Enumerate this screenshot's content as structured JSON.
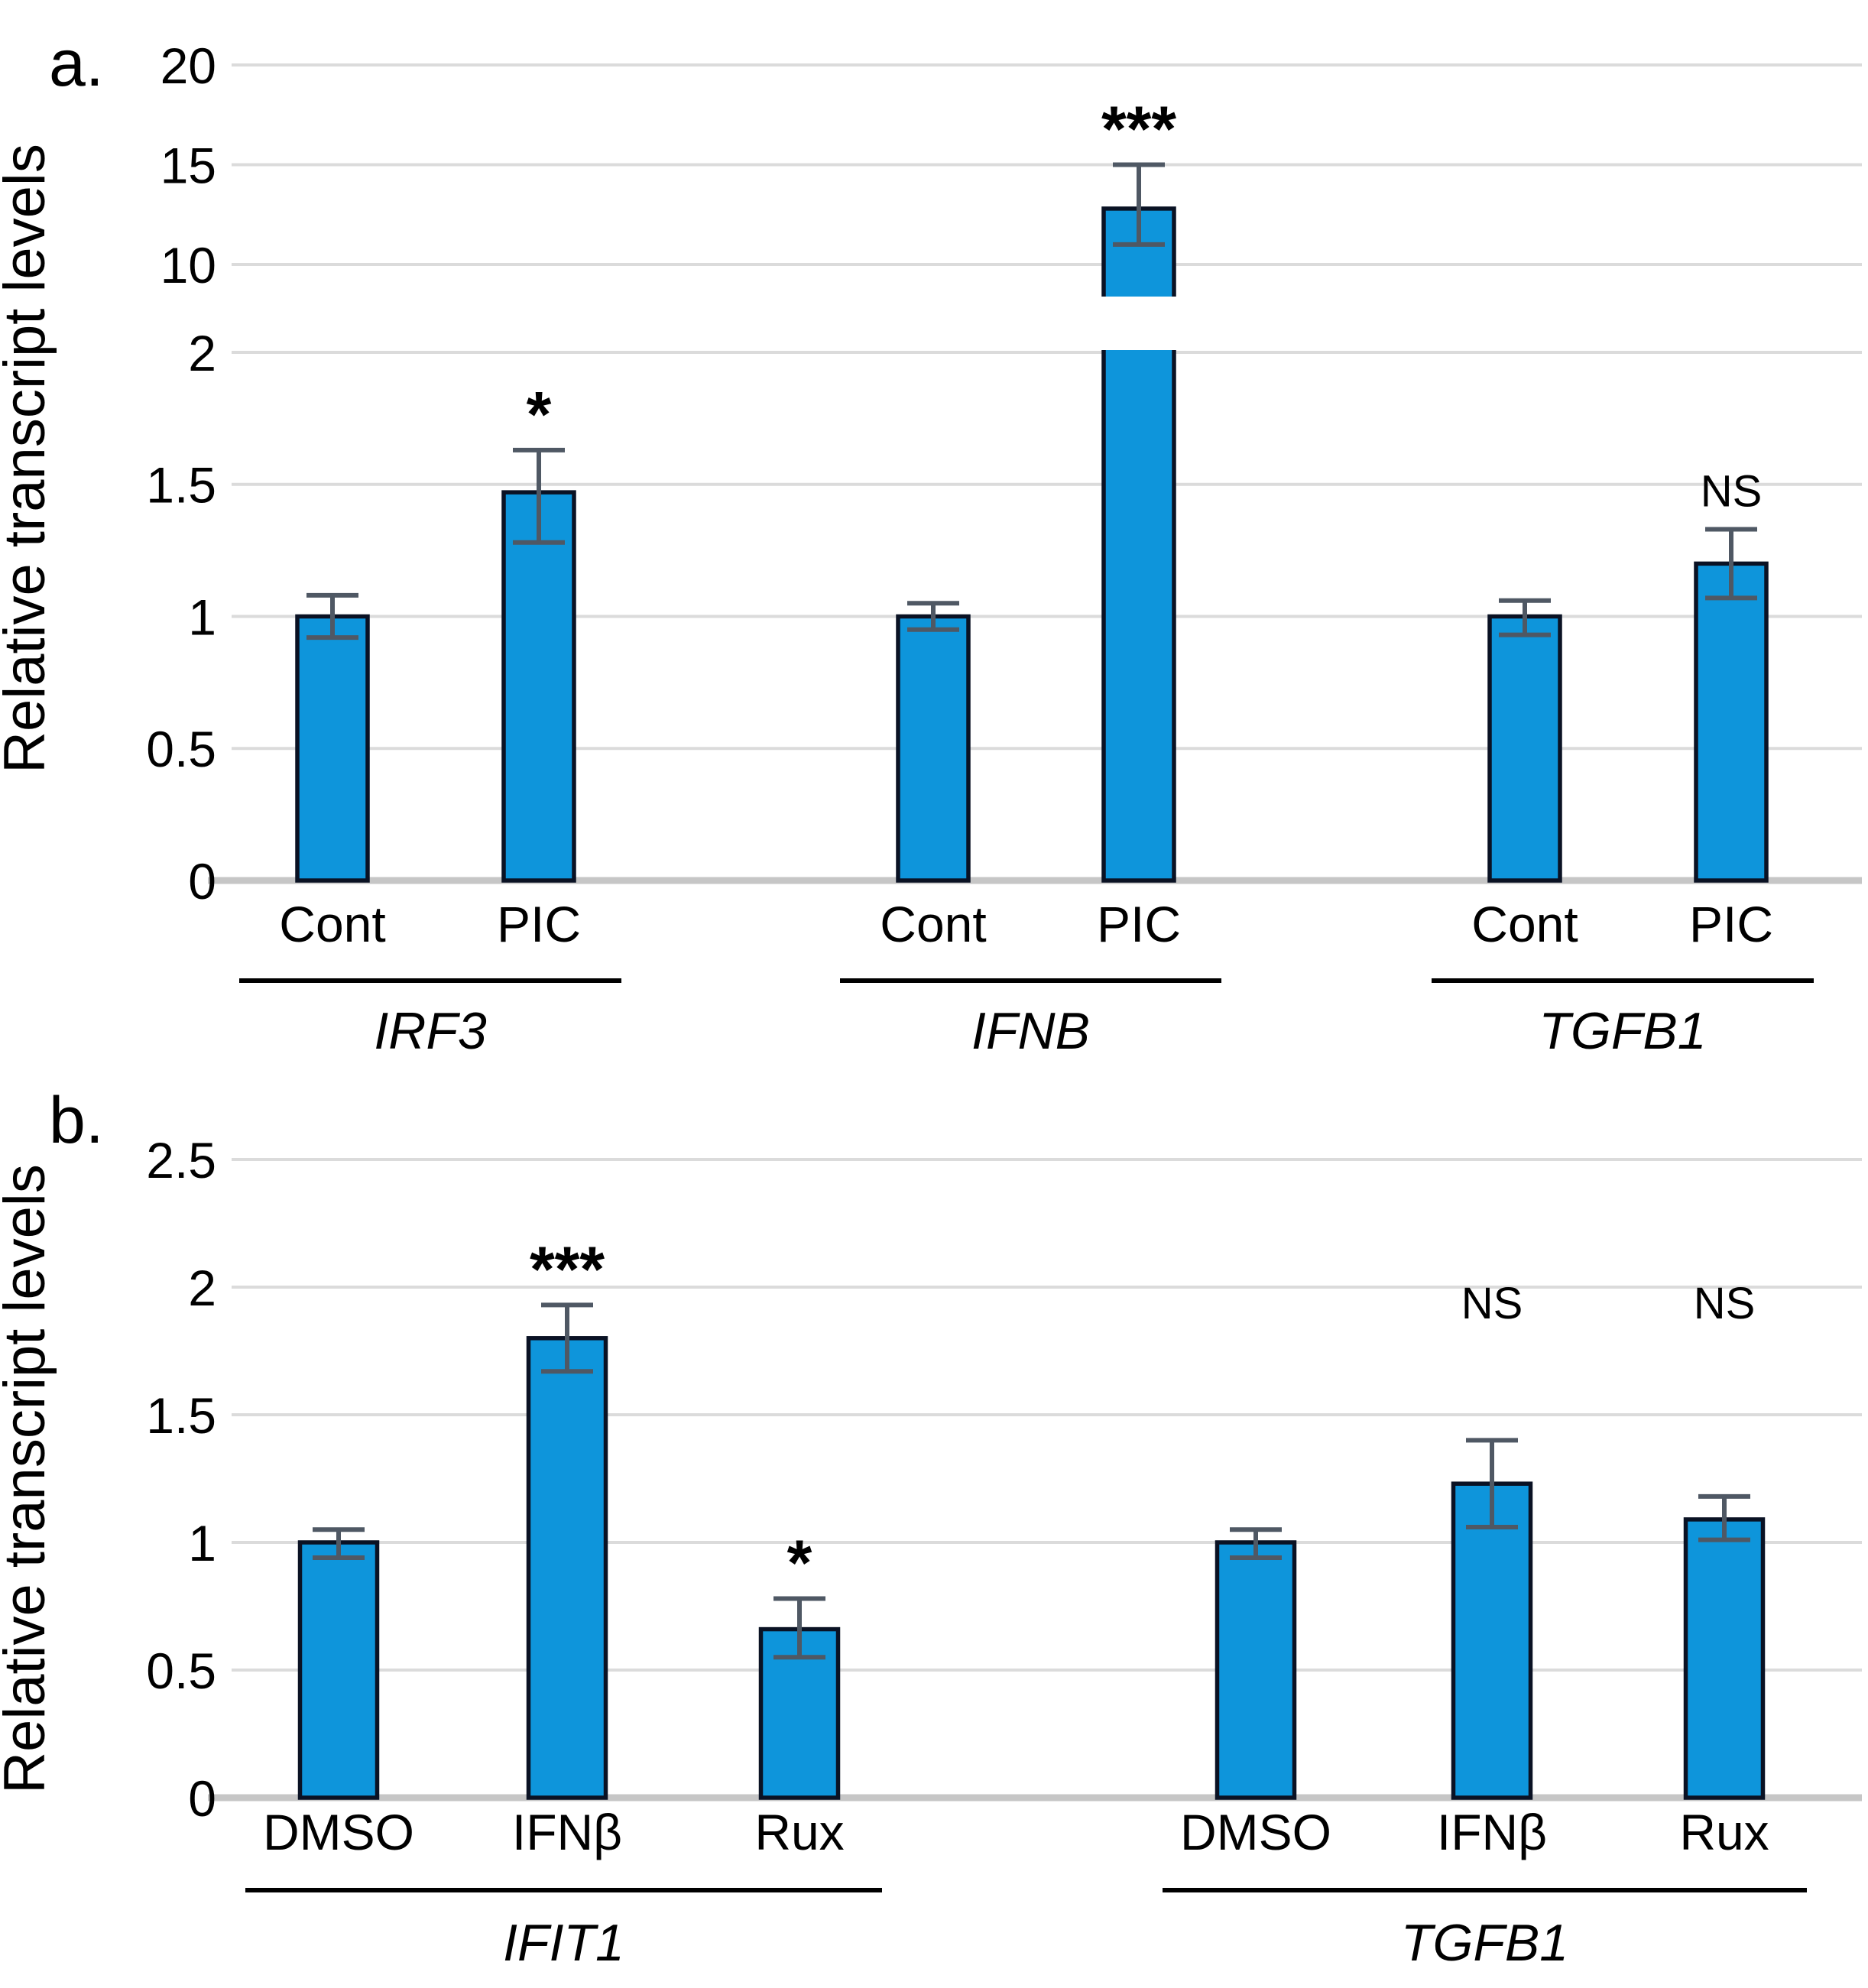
{
  "figure_title": "",
  "colors": {
    "bar_fill": "#0E95DB",
    "bar_stroke": "#0A1224",
    "error_bar": "#4F5864",
    "gridline": "#DBDBDB",
    "baseline": "#C6C6C6",
    "text": "#000000",
    "underline": "#000000",
    "background": "#FFFFFF"
  },
  "chart_data": [
    {
      "id": "panel_a",
      "panel_letter": "a.",
      "type": "bar",
      "title": "",
      "xlabel": "",
      "ylabel": "Relative transcript levels",
      "grid": true,
      "legend_position": "none",
      "axis_break": {
        "between": [
          2,
          10
        ]
      },
      "ylim_segments": [
        [
          0,
          2
        ],
        [
          10,
          20
        ]
      ],
      "y_ticks": [
        {
          "v": 0,
          "label": "0"
        },
        {
          "v": 0.5,
          "label": "0.5"
        },
        {
          "v": 1,
          "label": "1"
        },
        {
          "v": 1.5,
          "label": "1.5"
        },
        {
          "v": 2,
          "label": "2"
        },
        {
          "v": 10,
          "label": "10"
        },
        {
          "v": 15,
          "label": "15"
        },
        {
          "v": 20,
          "label": "20"
        }
      ],
      "groups": [
        {
          "gene": "IRF3",
          "bars": [
            {
              "label": "Cont",
              "value": 1.0,
              "err_up": 0.08,
              "err_down": 0.08,
              "sig": ""
            },
            {
              "label": "PIC",
              "value": 1.47,
              "err_up": 0.16,
              "err_down": 0.19,
              "sig": "*"
            }
          ]
        },
        {
          "gene": "IFNB",
          "bars": [
            {
              "label": "Cont",
              "value": 1.0,
              "err_up": 0.05,
              "err_down": 0.05,
              "sig": ""
            },
            {
              "label": "PIC",
              "value": 12.8,
              "err_up": 2.2,
              "err_down": 1.8,
              "sig": "***",
              "crosses_break": true
            }
          ]
        },
        {
          "gene": "TGFB1",
          "bars": [
            {
              "label": "Cont",
              "value": 1.0,
              "err_up": 0.06,
              "err_down": 0.07,
              "sig": ""
            },
            {
              "label": "PIC",
              "value": 1.2,
              "err_up": 0.13,
              "err_down": 0.13,
              "sig": "NS"
            }
          ]
        }
      ]
    },
    {
      "id": "panel_b",
      "panel_letter": "b.",
      "type": "bar",
      "title": "",
      "xlabel": "",
      "ylabel": "Relative transcript levels",
      "grid": true,
      "legend_position": "none",
      "ylim_segments": [
        [
          0,
          2.5
        ]
      ],
      "y_ticks": [
        {
          "v": 0,
          "label": "0"
        },
        {
          "v": 0.5,
          "label": "0.5"
        },
        {
          "v": 1,
          "label": "1"
        },
        {
          "v": 1.5,
          "label": "1.5"
        },
        {
          "v": 2,
          "label": "2"
        },
        {
          "v": 2.5,
          "label": "2.5"
        }
      ],
      "groups": [
        {
          "gene": "IFIT1",
          "bars": [
            {
              "label": "DMSO",
              "value": 1.0,
              "err_up": 0.05,
              "err_down": 0.06,
              "sig": ""
            },
            {
              "label": "IFNβ",
              "value": 1.8,
              "err_up": 0.13,
              "err_down": 0.13,
              "sig": "***"
            },
            {
              "label": "Rux",
              "value": 0.66,
              "err_up": 0.12,
              "err_down": 0.11,
              "sig": "*"
            }
          ]
        },
        {
          "gene": "TGFB1",
          "bars": [
            {
              "label": "DMSO",
              "value": 1.0,
              "err_up": 0.05,
              "err_down": 0.06,
              "sig": ""
            },
            {
              "label": "IFNβ",
              "value": 1.23,
              "err_up": 0.17,
              "err_down": 0.17,
              "sig": "NS"
            },
            {
              "label": "Rux",
              "value": 1.09,
              "err_up": 0.09,
              "err_down": 0.08,
              "sig": "NS"
            }
          ]
        }
      ]
    }
  ]
}
